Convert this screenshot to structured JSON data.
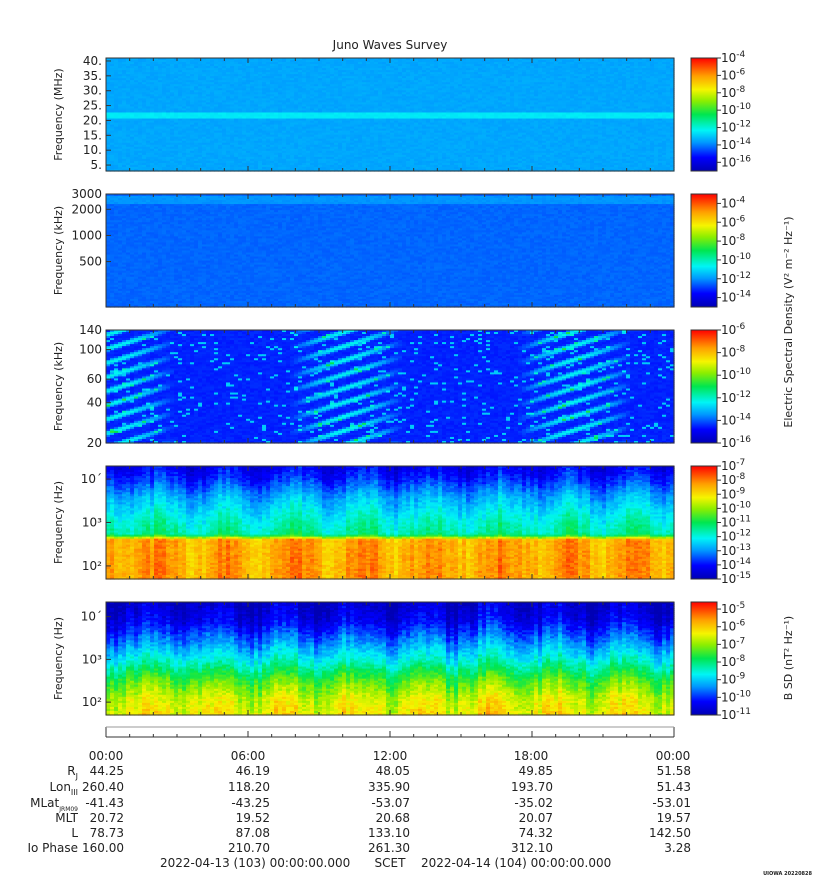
{
  "title": "Juno Waves Survey",
  "footer": {
    "start": "2022-04-13 (103) 00:00:00.000",
    "mid": "SCET",
    "end": "2022-04-14 (104) 00:00:00.000",
    "credit": "UIOWA 20220828"
  },
  "time_ticks": [
    "00:00",
    "06:00",
    "12:00",
    "18:00",
    "00:00"
  ],
  "ephemeris": [
    {
      "label": "R_J",
      "base": "R",
      "sub": "J",
      "values": [
        "44.25",
        "46.19",
        "48.05",
        "49.85",
        "51.58"
      ]
    },
    {
      "label": "Lon_III",
      "base": "Lon",
      "sub": "III",
      "values": [
        "260.40",
        "118.20",
        "335.90",
        "193.70",
        "51.43"
      ]
    },
    {
      "label": "MLat_JRM09",
      "base": "MLat",
      "sub": "JRM09",
      "values": [
        "-41.43",
        "-43.25",
        "-53.07",
        "-35.02",
        "-53.01"
      ]
    },
    {
      "label": "MLT",
      "base": "MLT",
      "sub": "",
      "values": [
        "20.72",
        "19.52",
        "20.68",
        "20.07",
        "19.57"
      ]
    },
    {
      "label": "L",
      "base": "L",
      "sub": "",
      "values": [
        "78.73",
        "87.08",
        "133.10",
        "74.32",
        "142.50"
      ]
    },
    {
      "label": "Io Phase",
      "base": "Io Phase",
      "sub": "",
      "values": [
        "160.00",
        "210.70",
        "261.30",
        "312.10",
        "3.28"
      ]
    }
  ],
  "colorbar_labels": {
    "electric": "Electric Spectral Density (V² m⁻² Hz⁻¹)",
    "magnetic": "B SD (nT² Hz⁻¹)"
  },
  "chart_data": [
    {
      "type": "heatmap",
      "ylabel": "Frequency (MHz)",
      "yscale": "linear",
      "ylim": [
        3,
        41
      ],
      "yticks": [
        "40.",
        "35.",
        "30.",
        "25.",
        "20.",
        "15.",
        "10.",
        "5."
      ],
      "ytick_values": [
        40,
        35,
        30,
        25,
        20,
        15,
        10,
        5
      ],
      "colorbar": {
        "exp_min": -17,
        "exp_max": -4,
        "tick_exponents": [
          -4,
          -6,
          -8,
          -10,
          -12,
          -14,
          -16
        ]
      },
      "features": [
        {
          "y_range": [
            20.5,
            22.5
          ],
          "level_exp": -12.5
        }
      ],
      "background_exp": -13.5
    },
    {
      "type": "heatmap",
      "ylabel": "Frequency (kHz)",
      "yscale": "log",
      "ylim": [
        150,
        3000
      ],
      "yticks": [
        "3000",
        "2000",
        "1000",
        "500"
      ],
      "ytick_values": [
        3000,
        2000,
        1000,
        500
      ],
      "colorbar": {
        "exp_min": -15,
        "exp_max": -3,
        "tick_exponents": [
          -4,
          -6,
          -8,
          -10,
          -12,
          -14
        ]
      },
      "features": [
        {
          "y_range": [
            2300,
            2900
          ],
          "level_exp": -12
        }
      ],
      "background_exp": -12.5
    },
    {
      "type": "heatmap",
      "ylabel": "Frequency (kHz)",
      "yscale": "log",
      "ylim": [
        20,
        140
      ],
      "yticks": [
        "140",
        "100",
        "60",
        "40",
        "20"
      ],
      "ytick_values": [
        140,
        100,
        60,
        40,
        20
      ],
      "colorbar": {
        "exp_min": -16,
        "exp_max": -6,
        "tick_exponents": [
          -6,
          -8,
          -10,
          -12,
          -14,
          -16
        ]
      },
      "background_exp": -14.5
    },
    {
      "type": "heatmap",
      "ylabel": "Frequency (Hz)",
      "yscale": "log",
      "ylim": [
        50,
        20000
      ],
      "yticks": [
        "10´",
        "10³",
        "10²"
      ],
      "ytick_values": [
        10000,
        1000,
        100
      ],
      "colorbar": {
        "exp_min": -15,
        "exp_max": -7,
        "tick_exponents": [
          -7,
          -8,
          -9,
          -10,
          -11,
          -12,
          -13,
          -14,
          -15
        ]
      },
      "profile_exp": [
        [
          50,
          -8.3
        ],
        [
          400,
          -8.4
        ],
        [
          520,
          -11.5
        ],
        [
          1000,
          -11.8
        ],
        [
          4000,
          -12.8
        ],
        [
          10000,
          -13.8
        ],
        [
          20000,
          -14.3
        ]
      ]
    },
    {
      "type": "heatmap",
      "ylabel": "Frequency (Hz)",
      "yscale": "log",
      "ylim": [
        50,
        22000
      ],
      "yticks": [
        "10´",
        "10³",
        "10²"
      ],
      "ytick_values": [
        10000,
        1000,
        100
      ],
      "colorbar": {
        "exp_min": -11,
        "exp_max": -4.6,
        "tick_exponents": [
          -5,
          -6,
          -7,
          -8,
          -9,
          -10,
          -11
        ]
      },
      "profile_exp": [
        [
          50,
          -6.3
        ],
        [
          120,
          -6.6
        ],
        [
          300,
          -7.3
        ],
        [
          1000,
          -8.6
        ],
        [
          3000,
          -9.6
        ],
        [
          8000,
          -10.4
        ],
        [
          22000,
          -10.8
        ]
      ]
    }
  ]
}
